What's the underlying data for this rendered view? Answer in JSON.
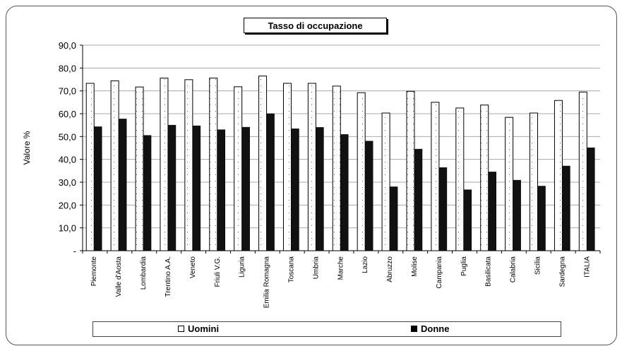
{
  "chart_data": {
    "type": "bar",
    "title": "Tasso di occupazione",
    "ylabel": "Valore %",
    "xlabel": "",
    "ylim": [
      0,
      90
    ],
    "yticks": [
      "-",
      "10,0",
      "20,0",
      "30,0",
      "40,0",
      "50,0",
      "60,0",
      "70,0",
      "80,0",
      "90,0"
    ],
    "categories": [
      "Piemonte",
      "Valle d'Aosta",
      "Lombardia",
      "Trentino A.A.",
      "Veneto",
      "Friuli V.G.",
      "Liguria",
      "Emilia Romagna",
      "Toscana",
      "Umbria",
      "Marche",
      "Lazio",
      "Abruzzo",
      "Molise",
      "Campania",
      "Puglia",
      "Basilicata",
      "Calabria",
      "Sicilia",
      "Sardegna",
      "ITALIA"
    ],
    "series": [
      {
        "name": "Uomini",
        "color": "#ffffff",
        "pattern": "dotted",
        "values": [
          73.3,
          74.4,
          71.7,
          75.6,
          74.9,
          75.6,
          71.8,
          76.5,
          73.3,
          73.3,
          72.1,
          69.2,
          60.3,
          69.8,
          65.0,
          62.5,
          63.8,
          58.4,
          60.3,
          65.8,
          69.5
        ]
      },
      {
        "name": "Donne",
        "color": "#111111",
        "values": [
          54.3,
          57.7,
          50.5,
          55.0,
          54.7,
          53.0,
          54.1,
          60.0,
          53.4,
          54.0,
          50.9,
          48.0,
          28.0,
          44.5,
          36.4,
          26.7,
          34.5,
          30.9,
          28.3,
          37.1,
          45.1
        ]
      }
    ],
    "grid": true,
    "legend": "bottom"
  }
}
